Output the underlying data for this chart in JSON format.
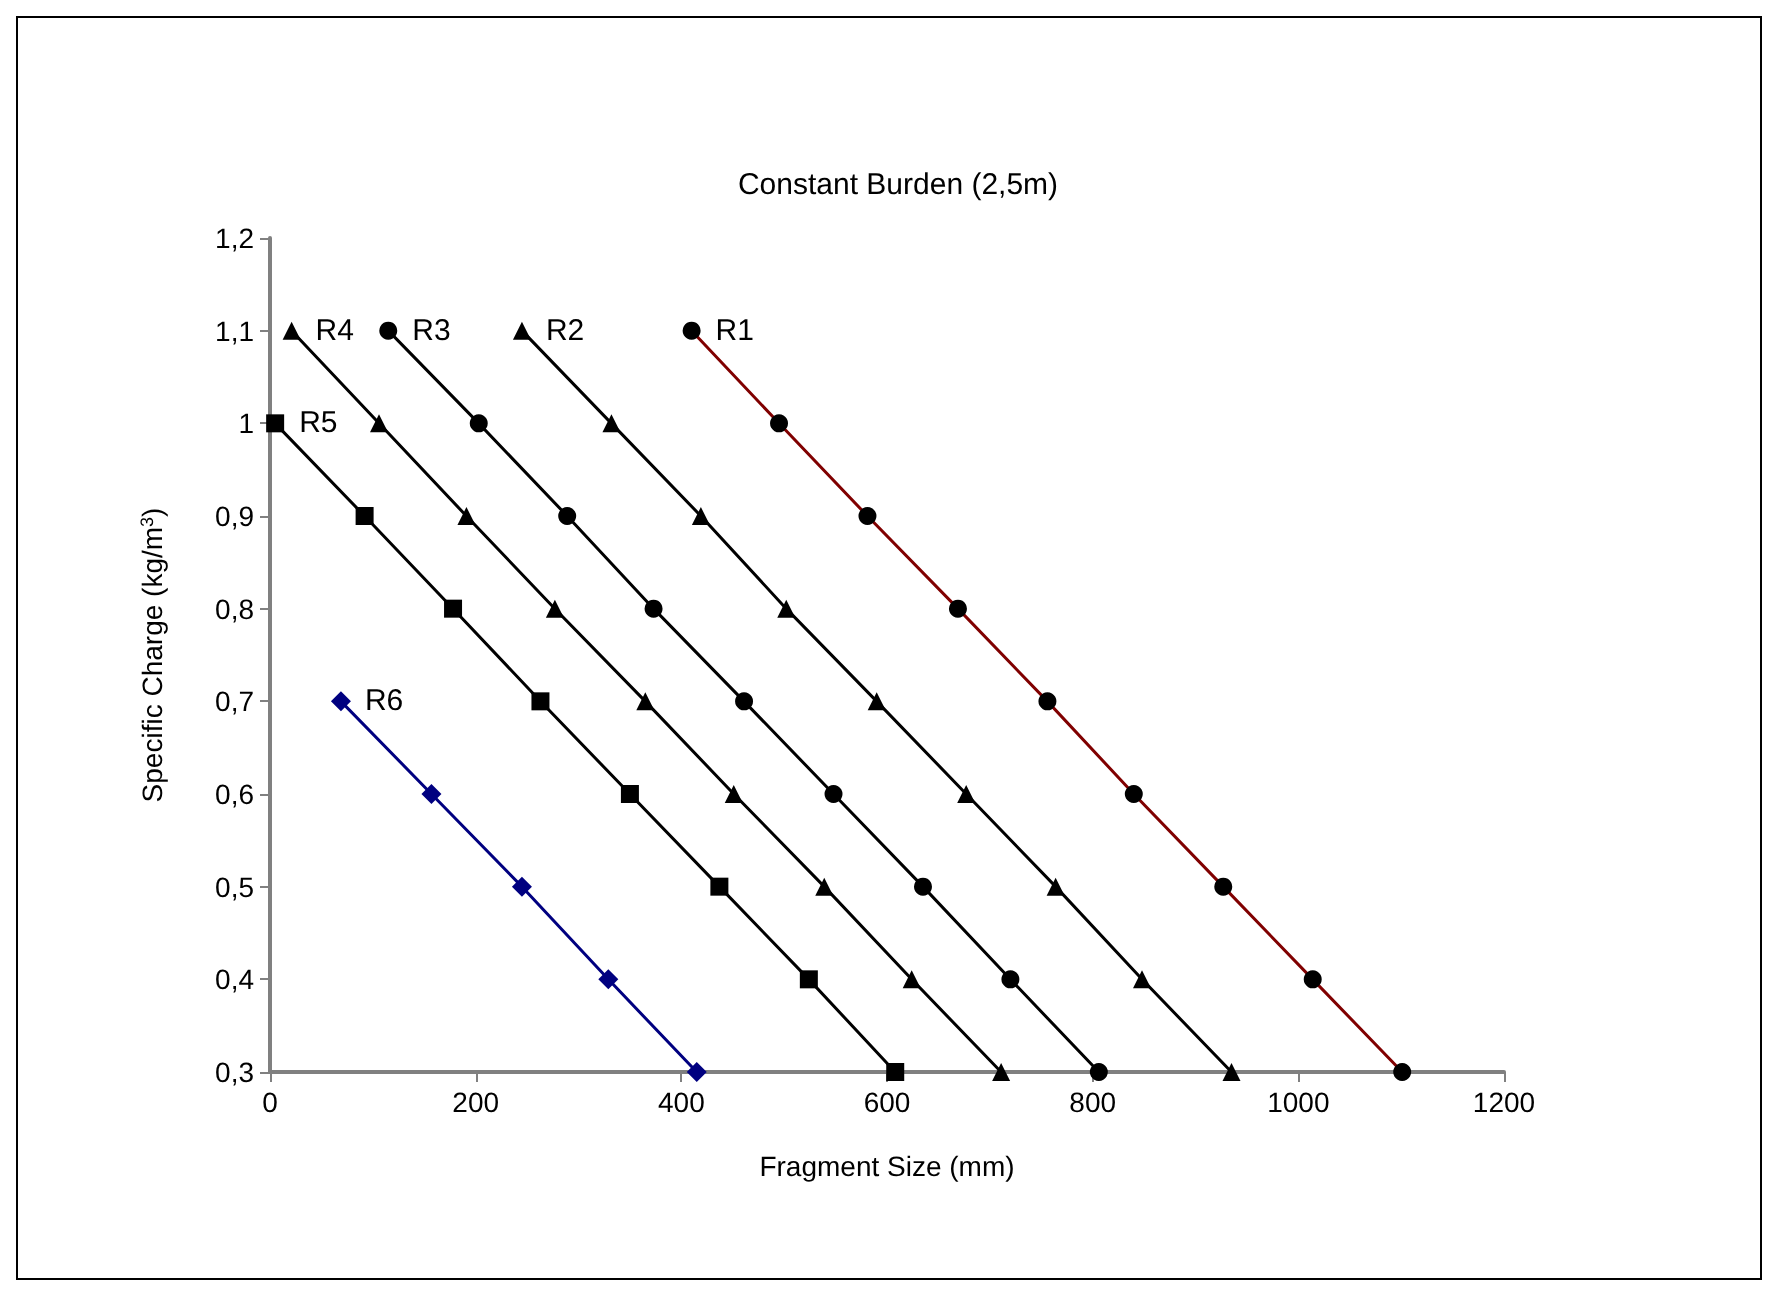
{
  "chart_data": {
    "type": "line",
    "title": "Constant Burden (2,5m)",
    "xlabel": "Fragment Size (mm)",
    "ylabel": "Specific Charge (kg/m$^{3}$)",
    "xlim": [
      0,
      1200
    ],
    "xticks": [
      0,
      200,
      400,
      600,
      800,
      1000,
      1200
    ],
    "ylim": [
      0.3,
      1.2
    ],
    "yticks": [
      {
        "value": 0.3,
        "label": "0,3"
      },
      {
        "value": 0.4,
        "label": "0,4"
      },
      {
        "value": 0.5,
        "label": "0,5"
      },
      {
        "value": 0.6,
        "label": "0,6"
      },
      {
        "value": 0.7,
        "label": "0,7"
      },
      {
        "value": 0.8,
        "label": "0,8"
      },
      {
        "value": 0.9,
        "label": "0,9"
      },
      {
        "value": 1,
        "label": "1"
      },
      {
        "value": 1.1,
        "label": "1,1"
      },
      {
        "value": 1.2,
        "label": "1,2"
      }
    ],
    "grid": false,
    "legend": false,
    "series": [
      {
        "name": "R1",
        "color": "#800000",
        "marker": "circle",
        "x": [
          410,
          495,
          581,
          669,
          756,
          840,
          927,
          1014,
          1101
        ],
        "values": [
          1.1,
          1,
          0.9,
          0.8,
          0.7,
          0.6,
          0.5,
          0.4,
          0.3
        ]
      },
      {
        "name": "R2",
        "color": "#000000",
        "marker": "triangle",
        "x": [
          245,
          332,
          419,
          502,
          590,
          677,
          764,
          848,
          935
        ],
        "values": [
          1.1,
          1,
          0.9,
          0.8,
          0.7,
          0.6,
          0.5,
          0.4,
          0.3
        ]
      },
      {
        "name": "R3",
        "color": "#000000",
        "marker": "circle",
        "x": [
          115,
          203,
          289,
          373,
          461,
          548,
          635,
          720,
          806
        ],
        "values": [
          1.1,
          1,
          0.9,
          0.8,
          0.7,
          0.6,
          0.5,
          0.4,
          0.3
        ]
      },
      {
        "name": "R4",
        "color": "#000000",
        "marker": "triangle",
        "x": [
          21,
          106,
          191,
          277,
          365,
          451,
          539,
          624,
          711
        ],
        "values": [
          1.1,
          1,
          0.9,
          0.8,
          0.7,
          0.6,
          0.5,
          0.4,
          0.3
        ]
      },
      {
        "name": "R5",
        "color": "#000000",
        "marker": "square",
        "x": [
          5,
          92,
          178,
          263,
          350,
          437,
          524,
          608
        ],
        "values": [
          1,
          0.9,
          0.8,
          0.7,
          0.6,
          0.5,
          0.4,
          0.3
        ]
      },
      {
        "name": "R6",
        "color": "#000080",
        "marker": "diamond",
        "x": [
          69,
          157,
          245,
          329,
          415
        ],
        "values": [
          0.7,
          0.6,
          0.5,
          0.4,
          0.3
        ]
      }
    ]
  }
}
